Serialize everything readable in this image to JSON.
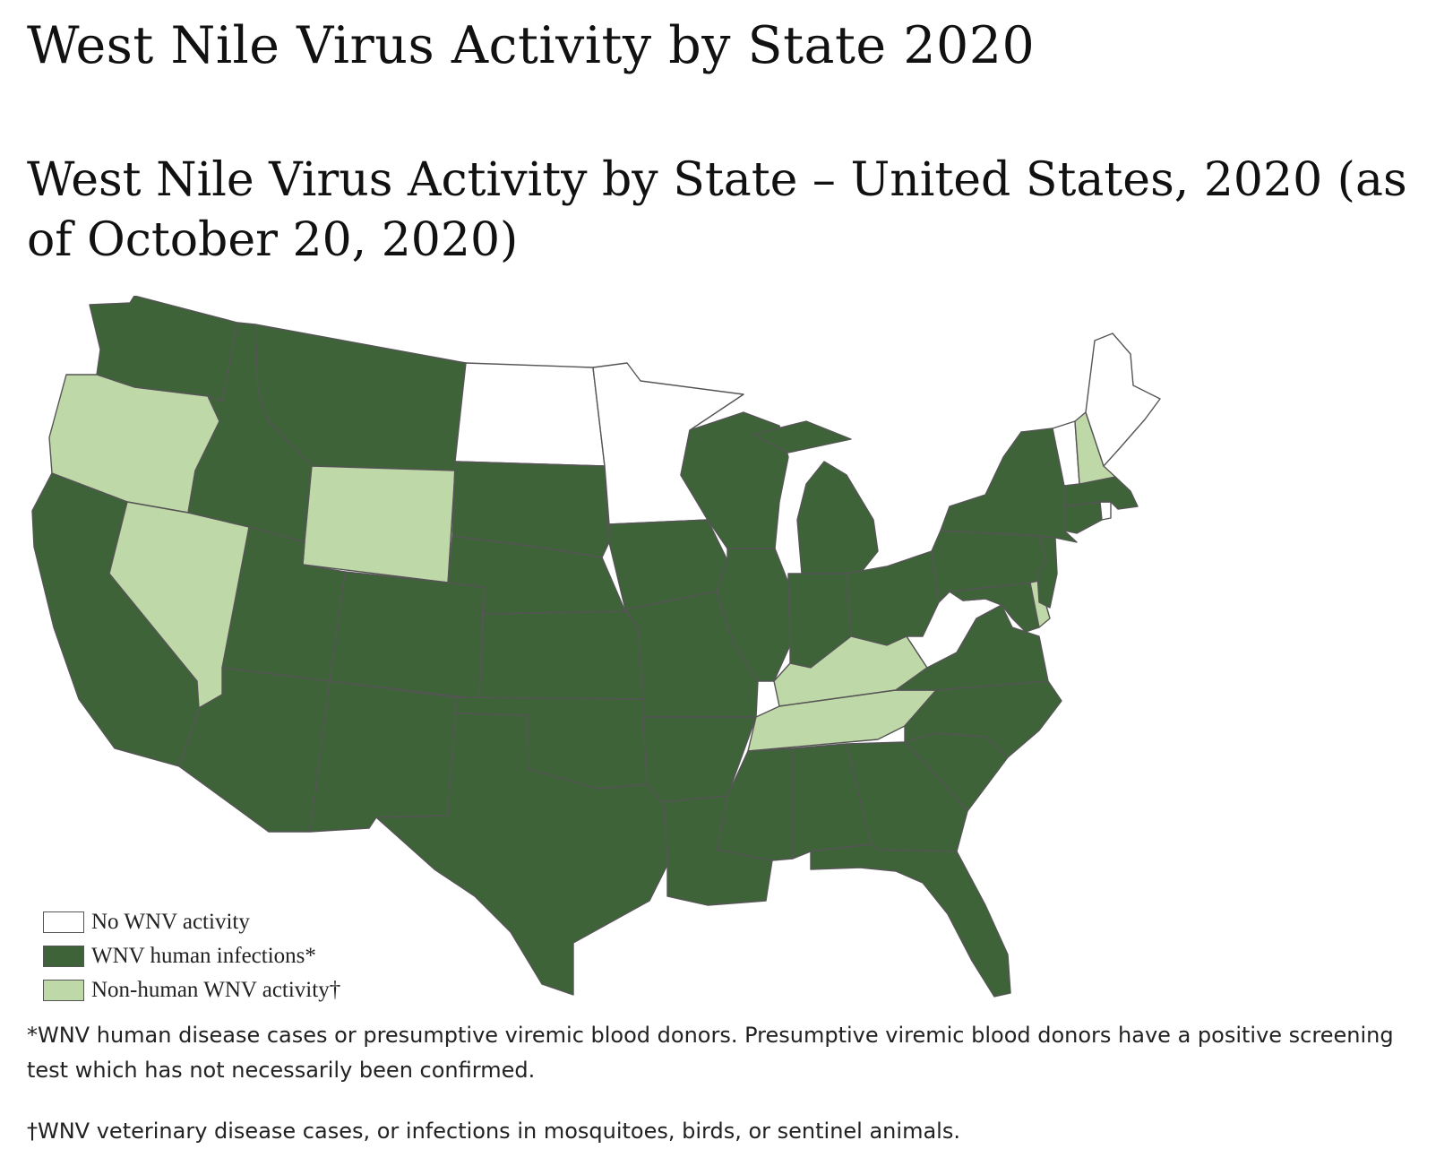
{
  "page": {
    "title": "West Nile Virus Activity by State 2020",
    "subtitle": "West Nile Virus Activity by State – United States, 2020 (as of October 20, 2020)"
  },
  "map": {
    "colors": {
      "no_activity": "#ffffff",
      "human_infections": "#3e6339",
      "non_human_activity": "#bfd8a7",
      "border": "#555555"
    },
    "states": {
      "WA": "human_infections",
      "OR": "non_human_activity",
      "CA": "human_infections",
      "NV": "non_human_activity",
      "ID": "human_infections",
      "MT": "human_infections",
      "WY": "non_human_activity",
      "UT": "human_infections",
      "CO": "human_infections",
      "AZ": "human_infections",
      "NM": "human_infections",
      "ND": "no_activity",
      "SD": "human_infections",
      "NE": "human_infections",
      "KS": "human_infections",
      "OK": "human_infections",
      "TX": "human_infections",
      "MN": "no_activity",
      "IA": "human_infections",
      "MO": "human_infections",
      "AR": "human_infections",
      "LA": "human_infections",
      "WI": "human_infections",
      "IL": "human_infections",
      "MI": "human_infections",
      "IN": "human_infections",
      "OH": "human_infections",
      "KY": "non_human_activity",
      "TN": "non_human_activity",
      "MS": "human_infections",
      "AL": "human_infections",
      "GA": "human_infections",
      "FL": "human_infections",
      "SC": "human_infections",
      "NC": "human_infections",
      "VA": "human_infections",
      "WV": "no_activity",
      "MD": "human_infections",
      "DE": "non_human_activity",
      "NJ": "human_infections",
      "PA": "human_infections",
      "NY": "human_infections",
      "CT": "human_infections",
      "RI": "no_activity",
      "MA": "human_infections",
      "VT": "no_activity",
      "NH": "non_human_activity",
      "ME": "no_activity"
    }
  },
  "legend": {
    "items": [
      {
        "key": "no_activity",
        "label": "No WNV activity"
      },
      {
        "key": "human_infections",
        "label": "WNV human infections*"
      },
      {
        "key": "non_human_activity",
        "label": "Non-human WNV activity†"
      }
    ]
  },
  "footnotes": {
    "human": "*WNV human disease cases or presumptive viremic blood donors. Presumptive viremic blood donors have a positive screening test which has not necessarily been confirmed.",
    "nonhuman": "†WNV veterinary disease cases, or infections in mosquitoes, birds, or sentinel animals."
  }
}
